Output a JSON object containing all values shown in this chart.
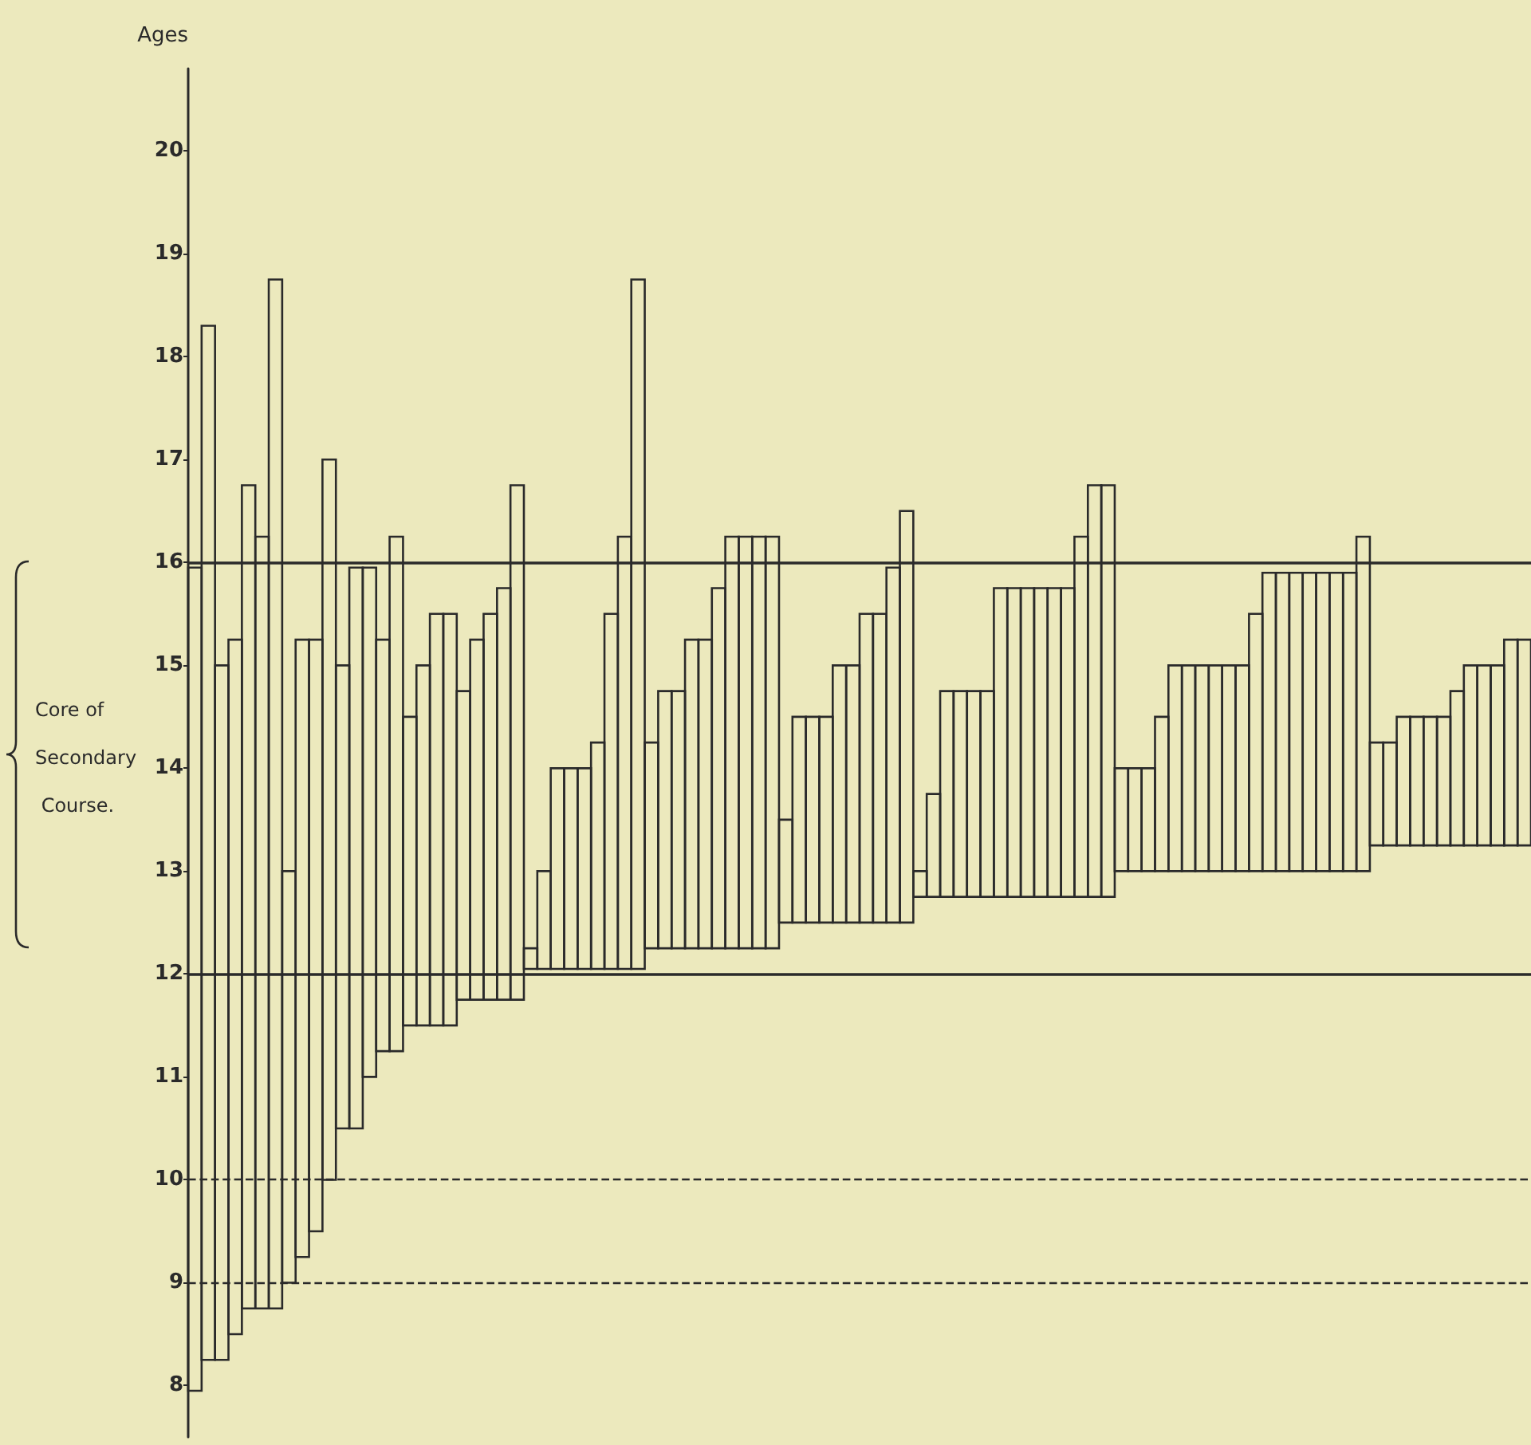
{
  "chart_data": {
    "type": "bar",
    "ylabel": "Ages",
    "categories": [
      null,
      null,
      null,
      null,
      null,
      null,
      null,
      null,
      null,
      null,
      null,
      null,
      null,
      null,
      null,
      null,
      null,
      null,
      null,
      null,
      null,
      null,
      null,
      null,
      null,
      null,
      null,
      null,
      null,
      null,
      null,
      null,
      null,
      null,
      null,
      null,
      null,
      null,
      null,
      null,
      null,
      null,
      null,
      null,
      null,
      null,
      null,
      null,
      null,
      null,
      null,
      null,
      null,
      null,
      null,
      null,
      null,
      null,
      null,
      null,
      null,
      null,
      null,
      null,
      null,
      null,
      null,
      null,
      null,
      null,
      null,
      null,
      null,
      null,
      null,
      null,
      null,
      null,
      null,
      null,
      null,
      null,
      null,
      null,
      null,
      null,
      null,
      null,
      null,
      null,
      null,
      null,
      null,
      null,
      null,
      null,
      null,
      null,
      null,
      null
    ],
    "base": [
      7.95,
      8.25,
      8.25,
      8.5,
      8.75,
      8.75,
      8.75,
      9.0,
      9.25,
      9.5,
      10.0,
      10.5,
      10.5,
      11.0,
      11.25,
      11.25,
      11.5,
      11.5,
      11.5,
      11.5,
      11.75,
      11.75,
      11.75,
      11.75,
      11.75,
      12.05,
      12.05,
      12.05,
      12.05,
      12.05,
      12.05,
      12.05,
      12.05,
      12.05,
      12.25,
      12.25,
      12.25,
      12.25,
      12.25,
      12.25,
      12.25,
      12.25,
      12.25,
      12.25,
      12.5,
      12.5,
      12.5,
      12.5,
      12.5,
      12.5,
      12.5,
      12.5,
      12.5,
      12.5,
      12.75,
      12.75,
      12.75,
      12.75,
      12.75,
      12.75,
      12.75,
      12.75,
      12.75,
      12.75,
      12.75,
      12.75,
      12.75,
      12.75,
      12.75,
      13.0,
      13.0,
      13.0,
      13.0,
      13.0,
      13.0,
      13.0,
      13.0,
      13.0,
      13.0,
      13.0,
      13.0,
      13.0,
      13.0,
      13.0,
      13.0,
      13.0,
      13.0,
      13.0,
      13.25,
      13.25,
      13.25,
      13.25,
      13.25,
      13.25,
      13.25,
      13.25,
      13.25,
      13.25,
      13.25,
      13.25
    ],
    "values": [
      8.0,
      10.05,
      6.75,
      6.75,
      8.0,
      7.5,
      10.0,
      4.0,
      6.0,
      5.75,
      7.0,
      4.5,
      5.45,
      4.95,
      4.0,
      5.0,
      3.0,
      3.5,
      4.0,
      4.0,
      3.0,
      3.5,
      3.75,
      4.0,
      5.0,
      0.2,
      0.95,
      1.95,
      1.95,
      1.95,
      2.2,
      3.45,
      4.2,
      6.7,
      2.0,
      2.5,
      2.5,
      3.0,
      3.0,
      3.5,
      4.0,
      4.0,
      4.0,
      4.0,
      1.0,
      2.0,
      2.0,
      2.0,
      2.5,
      2.5,
      3.0,
      3.0,
      3.45,
      4.0,
      0.25,
      1.0,
      2.0,
      2.0,
      2.0,
      2.0,
      3.0,
      3.0,
      3.0,
      3.0,
      3.0,
      3.0,
      3.5,
      4.0,
      4.0,
      1.0,
      1.0,
      1.0,
      1.5,
      2.0,
      2.0,
      2.0,
      2.0,
      2.0,
      2.0,
      2.5,
      2.9,
      2.9,
      2.9,
      2.9,
      2.9,
      2.9,
      2.9,
      3.25,
      1.0,
      1.0,
      1.25,
      1.25,
      1.25,
      1.25,
      1.5,
      1.75,
      1.75,
      1.75,
      2.0,
      2.0
    ],
    "color": "#2a2a2a",
    "ylim": [
      7.5,
      20.8
    ],
    "yticks": [
      8,
      9,
      10,
      11,
      12,
      13,
      14,
      15,
      16,
      17,
      18,
      19,
      20
    ],
    "tick_labels": "y",
    "ref_lines": [
      {
        "axis": "y",
        "value": 16,
        "line_style": "solid"
      },
      {
        "axis": "y",
        "value": 12,
        "line_style": "solid"
      },
      {
        "axis": "y",
        "value": 10,
        "line_style": "dashed"
      },
      {
        "axis": "y",
        "value": 9,
        "line_style": "dashed"
      }
    ],
    "annotations": [
      "Core of Secondary Course."
    ]
  }
}
